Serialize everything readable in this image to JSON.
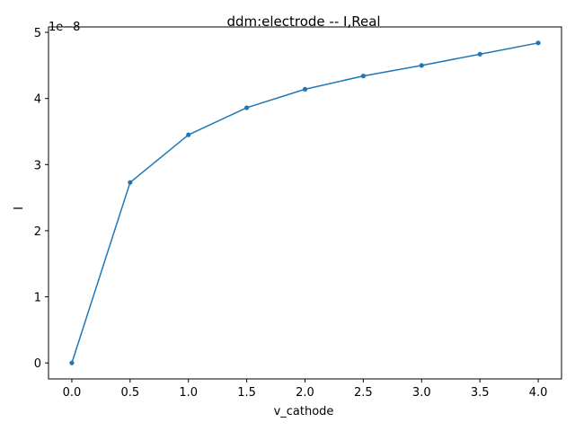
{
  "chart_data": {
    "type": "line",
    "title": "ddm:electrode -- I,Real",
    "xlabel": "v_cathode",
    "ylabel": "I",
    "y_scale_label": "1e−8",
    "x": [
      0.0,
      0.5,
      1.0,
      1.5,
      2.0,
      2.5,
      3.0,
      3.5,
      4.0
    ],
    "series": [
      {
        "values": [
          0.0,
          2.73,
          3.45,
          3.86,
          4.14,
          4.34,
          4.5,
          4.67,
          4.84
        ],
        "color": "#1f77b4",
        "marker": "dot"
      }
    ],
    "x_ticks": [
      0.0,
      0.5,
      1.0,
      1.5,
      2.0,
      2.5,
      3.0,
      3.5,
      4.0
    ],
    "x_tick_labels": [
      "0.0",
      "0.5",
      "1.0",
      "1.5",
      "2.0",
      "2.5",
      "3.0",
      "3.5",
      "4.0"
    ],
    "y_ticks": [
      0,
      1,
      2,
      3,
      4,
      5
    ],
    "y_tick_labels": [
      "0",
      "1",
      "2",
      "3",
      "4",
      "5"
    ],
    "xlim": [
      -0.2,
      4.2
    ],
    "ylim": [
      -0.242,
      5.082
    ],
    "grid": false,
    "legend": false
  }
}
